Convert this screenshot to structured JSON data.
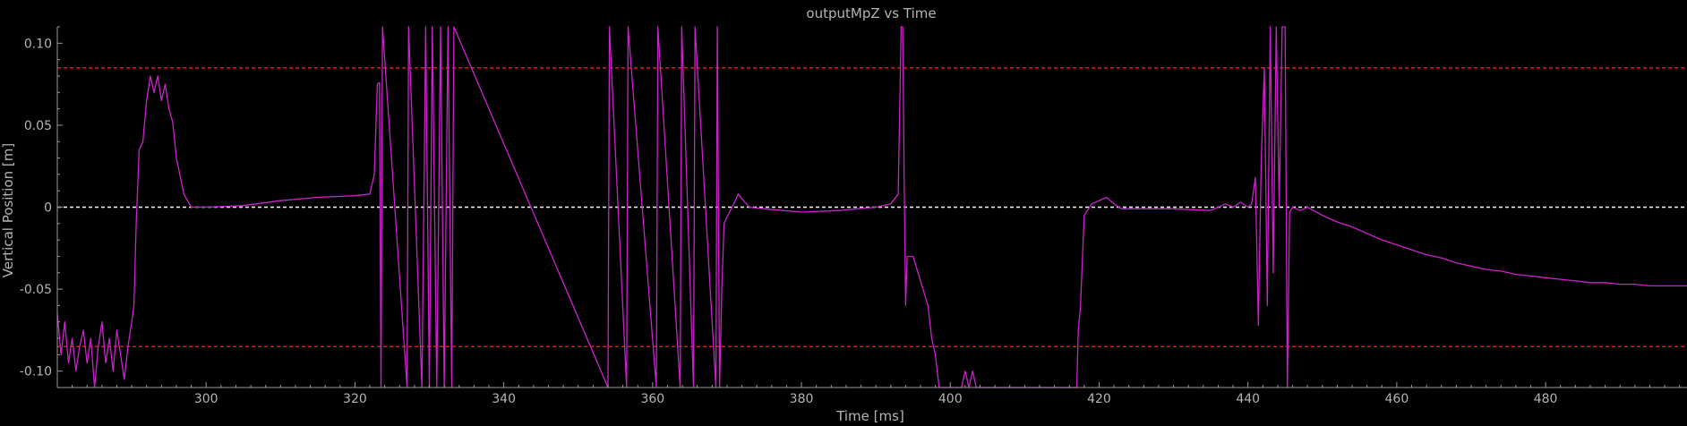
{
  "chart_data": {
    "type": "line",
    "title": "outputMpZ vs Time",
    "xlabel": "Time [ms]",
    "ylabel": "Vertical Position [m]",
    "xlim": [
      280,
      499
    ],
    "ylim": [
      -0.11,
      0.11
    ],
    "x_ticks": [
      300,
      320,
      340,
      360,
      380,
      400,
      420,
      440,
      460,
      480
    ],
    "x_tick_labels": [
      "300",
      "320",
      "340",
      "360",
      "380",
      "400",
      "420",
      "440",
      "460",
      "480"
    ],
    "y_ticks": [
      0.1,
      0.05,
      0,
      -0.05,
      -0.1
    ],
    "y_tick_labels": [
      "0.10",
      "0.05",
      "0",
      "-0.05",
      "-0.10"
    ],
    "grid": false,
    "colors": {
      "background": "#000000",
      "line": "#cc22cc",
      "threshold": "#e01818",
      "zero_line": "#ffffff",
      "axes": "#9a9a9a",
      "text": "#b4b4b4"
    },
    "reference_lines": [
      {
        "y": 0.085,
        "style": "dashed",
        "color": "#e01818"
      },
      {
        "y": -0.085,
        "style": "dashed",
        "color": "#e01818"
      },
      {
        "y": 0.0,
        "style": "dashed",
        "color": "#ffffff"
      }
    ],
    "series": [
      {
        "points": [
          [
            280,
            -0.065
          ],
          [
            280.5,
            -0.09
          ],
          [
            281,
            -0.07
          ],
          [
            281.5,
            -0.095
          ],
          [
            282,
            -0.08
          ],
          [
            282.5,
            -0.1
          ],
          [
            283,
            -0.085
          ],
          [
            283.5,
            -0.075
          ],
          [
            284,
            -0.095
          ],
          [
            284.5,
            -0.08
          ],
          [
            285,
            -0.11
          ],
          [
            285.5,
            -0.085
          ],
          [
            286,
            -0.07
          ],
          [
            286.5,
            -0.095
          ],
          [
            287,
            -0.08
          ],
          [
            287.5,
            -0.1
          ],
          [
            288,
            -0.075
          ],
          [
            288.5,
            -0.09
          ],
          [
            289,
            -0.105
          ],
          [
            289.5,
            -0.085
          ],
          [
            290,
            -0.07
          ],
          [
            290.3,
            -0.06
          ],
          [
            290.6,
            -0.01
          ],
          [
            291,
            0.035
          ],
          [
            291.5,
            0.04
          ],
          [
            292,
            0.065
          ],
          [
            292.5,
            0.08
          ],
          [
            293,
            0.07
          ],
          [
            293.5,
            0.08
          ],
          [
            294,
            0.065
          ],
          [
            294.5,
            0.075
          ],
          [
            295,
            0.06
          ],
          [
            295.5,
            0.052
          ],
          [
            296,
            0.03
          ],
          [
            297,
            0.008
          ],
          [
            298,
            0.0
          ],
          [
            300,
            0.0
          ],
          [
            305,
            0.001
          ],
          [
            310,
            0.004
          ],
          [
            315,
            0.006
          ],
          [
            320,
            0.007
          ],
          [
            322,
            0.008
          ],
          [
            322.6,
            0.02
          ],
          [
            323,
            0.075
          ],
          [
            323.3,
            0.076
          ],
          [
            323.5,
            -0.11
          ],
          [
            323.7,
            0.11
          ],
          [
            327,
            -0.11
          ],
          [
            327.2,
            0.11
          ],
          [
            329,
            -0.11
          ],
          [
            329.5,
            0.11
          ],
          [
            330,
            -0.11
          ],
          [
            330.4,
            0.11
          ],
          [
            331,
            -0.11
          ],
          [
            331.5,
            0.11
          ],
          [
            332,
            -0.11
          ],
          [
            332.5,
            0.11
          ],
          [
            333,
            -0.11
          ],
          [
            333.3,
            0.11
          ],
          [
            354,
            -0.11
          ],
          [
            354.2,
            0.11
          ],
          [
            356.5,
            -0.11
          ],
          [
            356.7,
            0.11
          ],
          [
            360.5,
            -0.11
          ],
          [
            360.7,
            0.11
          ],
          [
            363.7,
            -0.11
          ],
          [
            363.9,
            0.11
          ],
          [
            365.5,
            -0.11
          ],
          [
            365.7,
            0.11
          ],
          [
            368.5,
            -0.11
          ],
          [
            368.7,
            0.11
          ],
          [
            369,
            -0.11
          ],
          [
            369.3,
            -0.05
          ],
          [
            369.6,
            -0.01
          ],
          [
            370,
            -0.006
          ],
          [
            371,
            0.003
          ],
          [
            371.5,
            0.008
          ],
          [
            372,
            0.005
          ],
          [
            373,
            0.0
          ],
          [
            375,
            -0.001
          ],
          [
            380,
            -0.003
          ],
          [
            385,
            -0.002
          ],
          [
            390,
            0.0
          ],
          [
            392,
            0.002
          ],
          [
            393,
            0.008
          ],
          [
            393.4,
            0.11
          ],
          [
            393.6,
            0.11
          ],
          [
            393.8,
            0.02
          ],
          [
            394,
            -0.06
          ],
          [
            394.2,
            -0.03
          ],
          [
            395,
            -0.03
          ],
          [
            396,
            -0.045
          ],
          [
            397,
            -0.06
          ],
          [
            397.5,
            -0.08
          ],
          [
            398,
            -0.09
          ],
          [
            398.5,
            -0.11
          ],
          [
            401.5,
            -0.11
          ],
          [
            402,
            -0.1
          ],
          [
            402.5,
            -0.11
          ],
          [
            403,
            -0.1
          ],
          [
            403.5,
            -0.11
          ],
          [
            417,
            -0.11
          ],
          [
            417.2,
            -0.075
          ],
          [
            417.5,
            -0.06
          ],
          [
            418,
            -0.005
          ],
          [
            419,
            0.002
          ],
          [
            420,
            0.004
          ],
          [
            421,
            0.006
          ],
          [
            422,
            0.002
          ],
          [
            423,
            -0.001
          ],
          [
            425,
            -0.001
          ],
          [
            430,
            -0.001
          ],
          [
            435,
            -0.002
          ],
          [
            437,
            0.002
          ],
          [
            438,
            0.0
          ],
          [
            439,
            0.003
          ],
          [
            440,
            0.0
          ],
          [
            440.5,
            0.002
          ],
          [
            441,
            0.018
          ],
          [
            441.4,
            -0.072
          ],
          [
            441.8,
            0.03
          ],
          [
            442.2,
            0.085
          ],
          [
            442.6,
            -0.06
          ],
          [
            443,
            0.11
          ],
          [
            443.4,
            -0.04
          ],
          [
            443.8,
            0.11
          ],
          [
            444.2,
            0.0
          ],
          [
            444.6,
            0.11
          ],
          [
            445,
            0.11
          ],
          [
            445.3,
            -0.11
          ],
          [
            445.6,
            -0.003
          ],
          [
            446,
            0.0
          ],
          [
            447,
            -0.002
          ],
          [
            448,
            0.0
          ],
          [
            450,
            -0.005
          ],
          [
            452,
            -0.009
          ],
          [
            454,
            -0.012
          ],
          [
            456,
            -0.016
          ],
          [
            458,
            -0.02
          ],
          [
            460,
            -0.023
          ],
          [
            462,
            -0.026
          ],
          [
            464,
            -0.029
          ],
          [
            466,
            -0.031
          ],
          [
            468,
            -0.034
          ],
          [
            470,
            -0.036
          ],
          [
            472,
            -0.038
          ],
          [
            474,
            -0.039
          ],
          [
            476,
            -0.041
          ],
          [
            478,
            -0.042
          ],
          [
            480,
            -0.043
          ],
          [
            482,
            -0.044
          ],
          [
            484,
            -0.045
          ],
          [
            486,
            -0.046
          ],
          [
            488,
            -0.046
          ],
          [
            490,
            -0.047
          ],
          [
            492,
            -0.047
          ],
          [
            494,
            -0.048
          ],
          [
            496,
            -0.048
          ],
          [
            499,
            -0.048
          ]
        ]
      }
    ]
  }
}
